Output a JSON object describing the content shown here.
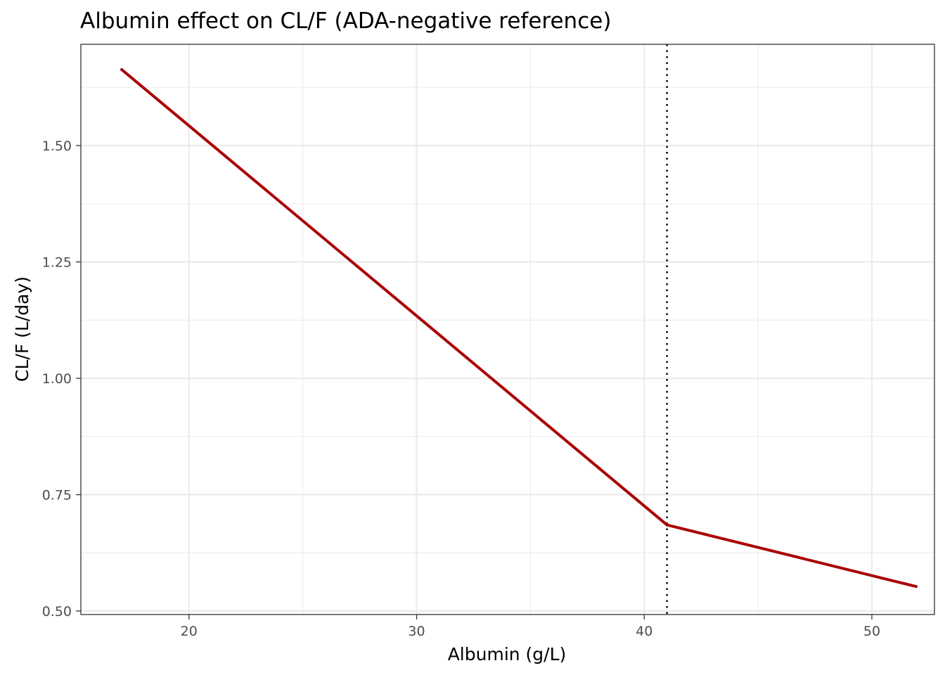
{
  "chart_data": {
    "type": "line",
    "title": "Albumin effect on CL/F (ADA-negative reference)",
    "xlabel": "Albumin (g/L)",
    "ylabel": "CL/F (L/day)",
    "xlim": [
      15.25,
      52.75
    ],
    "ylim": [
      0.4925,
      1.7175
    ],
    "x_ticks": [
      20,
      30,
      40,
      50
    ],
    "x_tick_labels": [
      "20",
      "30",
      "40",
      "50"
    ],
    "x_minor_ticks": [
      25,
      35,
      45
    ],
    "y_ticks": [
      0.5,
      0.75,
      1.0,
      1.25,
      1.5
    ],
    "y_tick_labels": [
      "0.50",
      "0.75",
      "1.00",
      "1.25",
      "1.50"
    ],
    "y_minor_ticks": [
      0.625,
      0.875,
      1.125,
      1.375,
      1.625
    ],
    "grid": true,
    "legend": "none",
    "series": [
      {
        "color": "#AA0000",
        "x": [
          17,
          41,
          52
        ],
        "y": [
          1.665,
          0.685,
          0.552
        ]
      }
    ],
    "reference_lines": [
      {
        "orientation": "vertical",
        "x": 41,
        "style": "dotted",
        "color": "#000000"
      }
    ]
  }
}
